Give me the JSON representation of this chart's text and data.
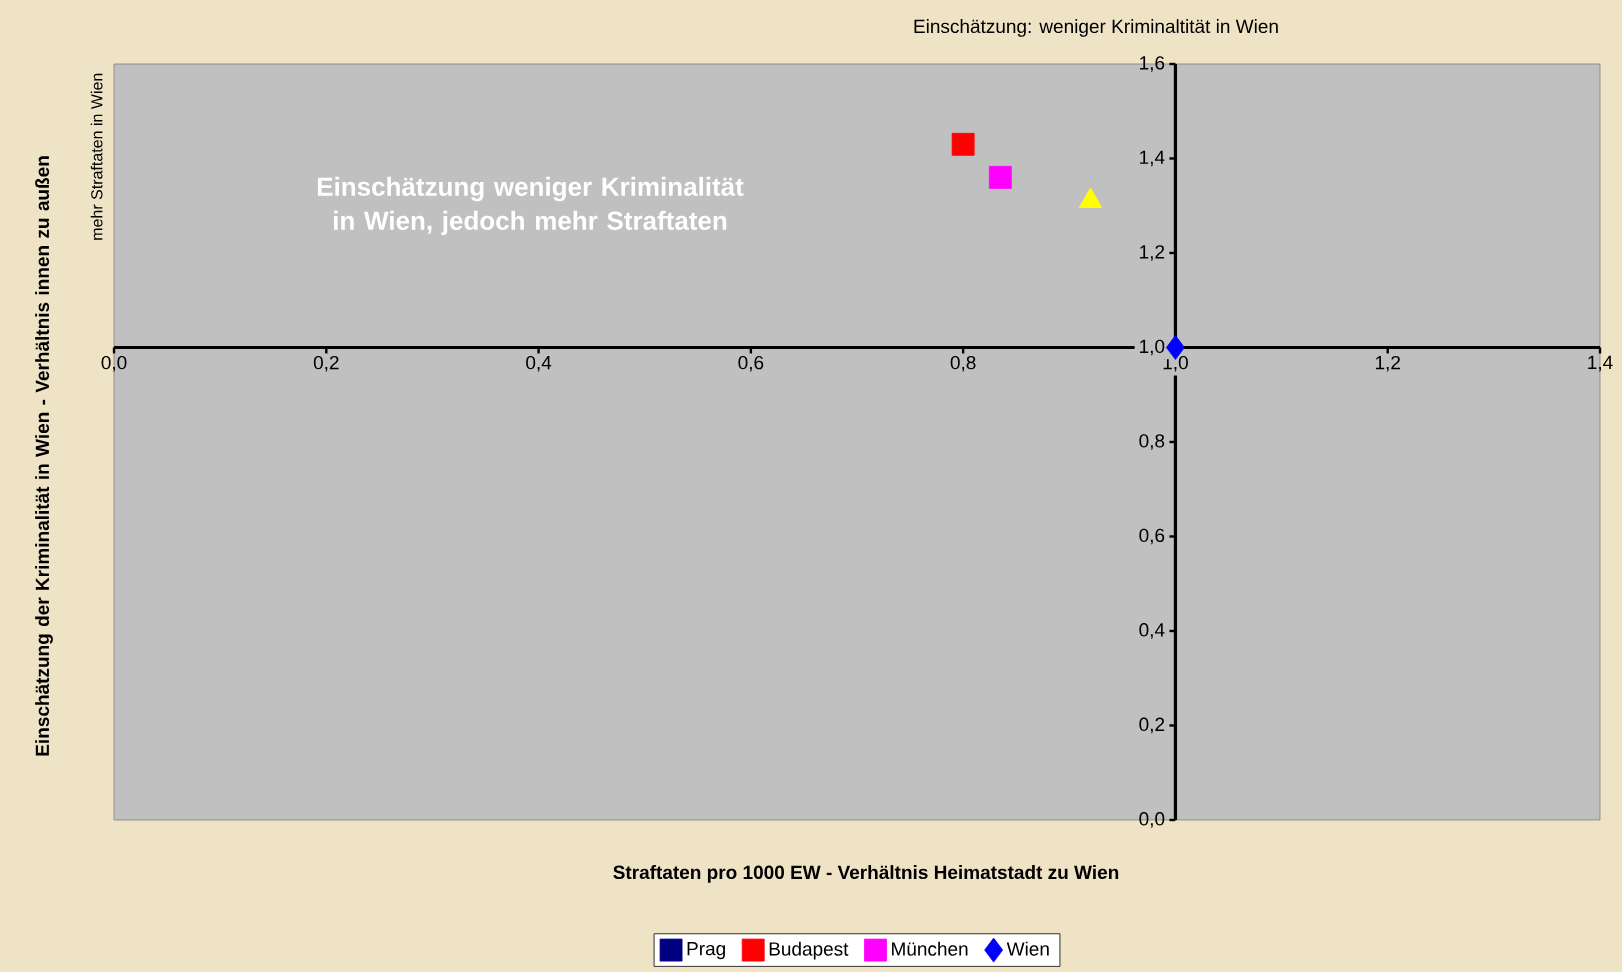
{
  "chart_data": {
    "type": "scatter",
    "title": "Einschätzung: weniger Kriminaltität in Wien",
    "xlabel": "Straftaten pro 1000 EW - Verhältnis Heimatstadt zu Wien",
    "ylabel": "Einschätzung der Kriminalität in Wien - Verhältnis innen zu außen",
    "annotations": [
      "Einschätzung weniger Kriminalität in Wien, jedoch mehr Straftaten",
      "mehr Straftaten in Wien"
    ],
    "series": [
      {
        "name": "Prag",
        "color": "#000080",
        "marker": "square",
        "x": [
          null
        ],
        "values": [
          null
        ]
      },
      {
        "name": "Budapest",
        "color": "#ff0000",
        "marker": "square",
        "x": [
          0.8
        ],
        "values": [
          1.43
        ]
      },
      {
        "name": "München",
        "color": "#ff00ff",
        "marker": "square",
        "x": [
          0.835
        ],
        "values": [
          1.36
        ]
      },
      {
        "name": "Wien",
        "color": "#0000ff",
        "marker": "diamond",
        "x": [
          1.0
        ],
        "values": [
          1.0
        ]
      },
      {
        "color": "#ffff00",
        "marker": "triangle",
        "x": [
          0.92
        ],
        "values": [
          1.31
        ]
      }
    ],
    "xlim": [
      0,
      1.4
    ],
    "ylim": [
      0,
      1.6
    ],
    "xticks": [
      {
        "value": 0,
        "label": "0,0"
      },
      {
        "value": 0.2,
        "label": "0,2"
      },
      {
        "value": 0.4,
        "label": "0,4"
      },
      {
        "value": 0.6,
        "label": "0,6"
      },
      {
        "value": 0.8,
        "label": "0,8"
      },
      {
        "value": 1.0,
        "label": "1,0"
      },
      {
        "value": 1.2,
        "label": "1,2"
      },
      {
        "value": 1.4,
        "label": "1,4"
      }
    ],
    "yticks": [
      {
        "value": 0,
        "label": "0,0"
      },
      {
        "value": 0.2,
        "label": "0,2"
      },
      {
        "value": 0.4,
        "label": "0,4"
      },
      {
        "value": 0.6,
        "label": "0,6"
      },
      {
        "value": 0.8,
        "label": "0,8"
      },
      {
        "value": 1.0,
        "label": "1,0"
      },
      {
        "value": 1.2,
        "label": "1,2"
      },
      {
        "value": 1.4,
        "label": "1,4"
      },
      {
        "value": 1.6,
        "label": "1,6"
      }
    ],
    "legend": "bottom"
  }
}
